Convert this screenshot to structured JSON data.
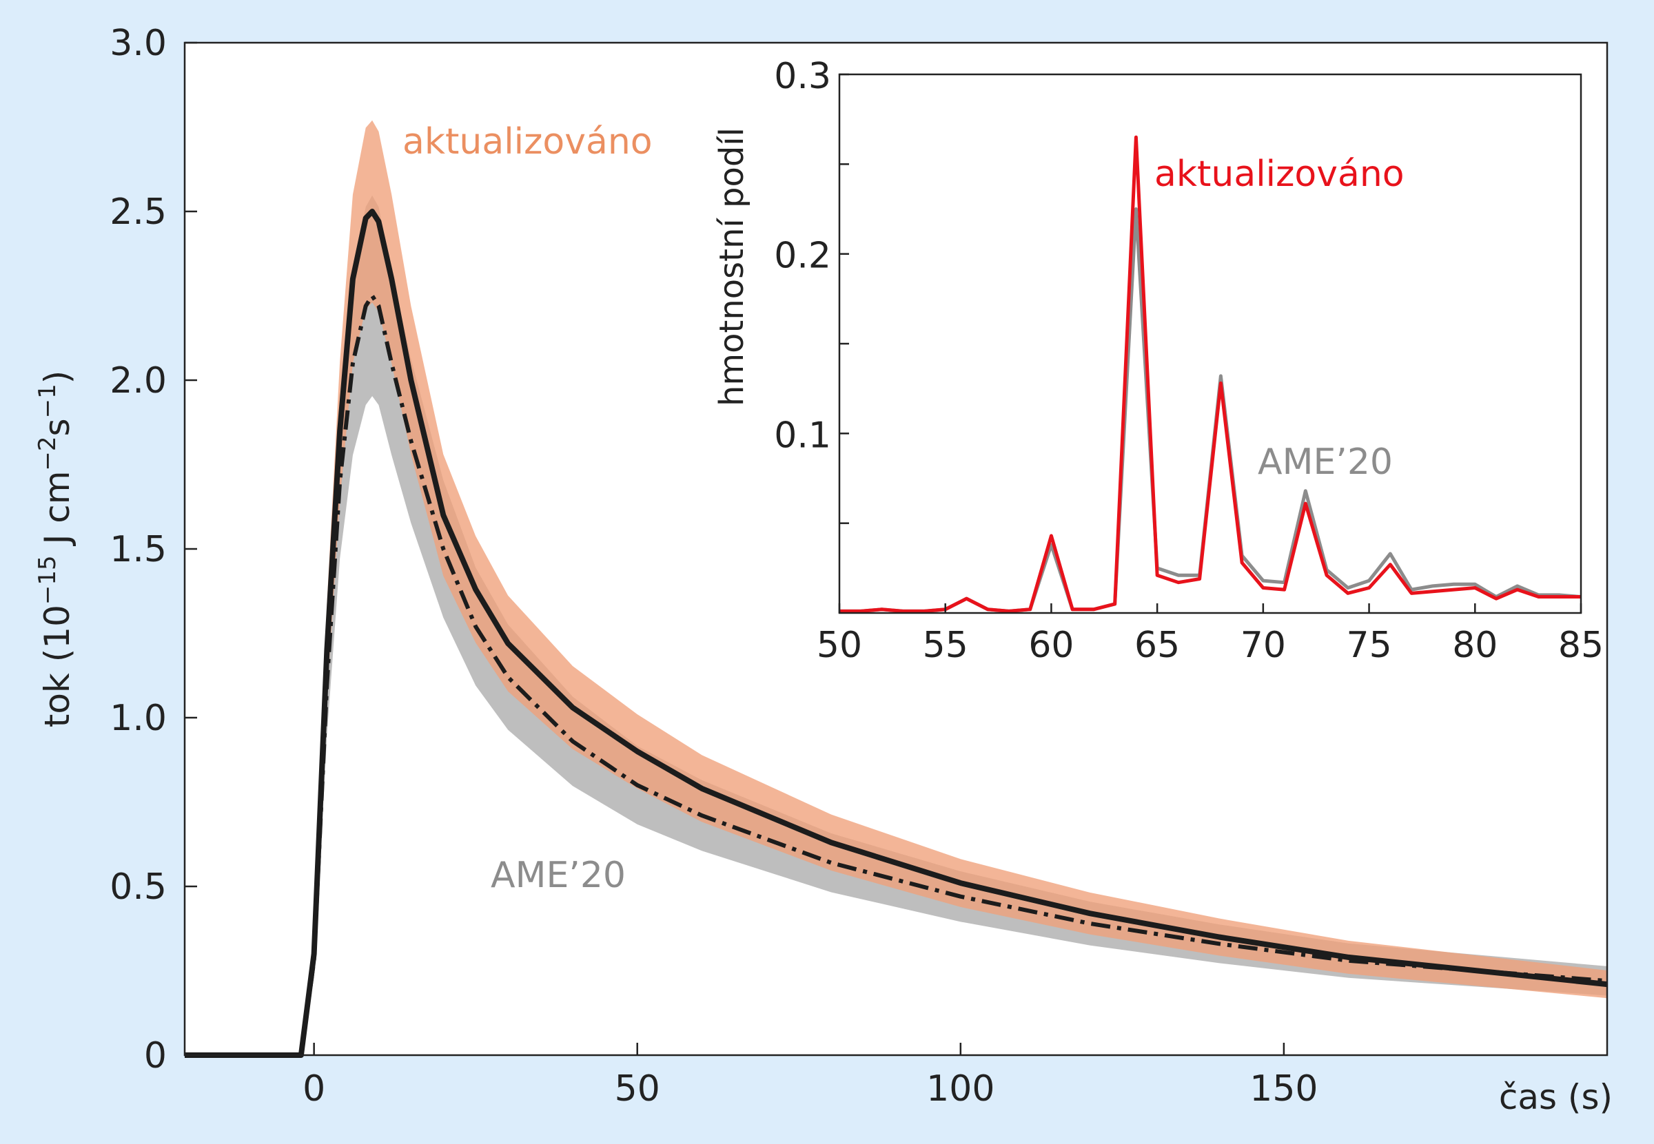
{
  "colors": {
    "background": "#dcedfb",
    "updated_band": "#f0a07a",
    "ame_band": "#b7b7b7",
    "main_line": "#1c1c1c",
    "inset_updated": "#e8121b",
    "inset_ame": "#8c8c8c",
    "label_orange": "#eb8f61",
    "label_gray": "#8c8c8c"
  },
  "chart_data": [
    {
      "type": "line",
      "xlabel": "čas (s)",
      "ylabel_main": "tok",
      "ylabel_unit_prefix": "(10",
      "ylabel_exp1": "−15",
      "ylabel_mid": " J cm",
      "ylabel_exp2": "−2",
      "ylabel_s": "s",
      "ylabel_exp3": "−1",
      "ylabel_end": ")",
      "xlim": [
        -20,
        200
      ],
      "ylim": [
        0,
        3.0
      ],
      "xticks": [
        0,
        50,
        100,
        150
      ],
      "xtick_labels": [
        "0",
        "50",
        "100",
        "150"
      ],
      "yticks": [
        0,
        0.5,
        1.0,
        1.5,
        2.0,
        2.5,
        3.0
      ],
      "ytick_labels": [
        "0",
        "0.5",
        "1.0",
        "1.5",
        "2.0",
        "2.5",
        "3.0"
      ],
      "grid": false,
      "annotations": [
        "aktualizováno",
        "AME’20"
      ],
      "series": [
        {
          "name": "aktualizováno",
          "style": "solid",
          "x": [
            -20,
            -2,
            0,
            2,
            4,
            6,
            8,
            9,
            10,
            12,
            15,
            20,
            25,
            30,
            40,
            50,
            60,
            80,
            100,
            120,
            140,
            160,
            180,
            200
          ],
          "y": [
            0,
            0,
            0.3,
            1.2,
            1.85,
            2.3,
            2.48,
            2.5,
            2.47,
            2.3,
            2.0,
            1.6,
            1.38,
            1.22,
            1.03,
            0.9,
            0.79,
            0.63,
            0.51,
            0.42,
            0.35,
            0.29,
            0.25,
            0.21
          ],
          "band": [
            0.2,
            0.05
          ]
        },
        {
          "name": "AME’20",
          "style": "dash-dot",
          "x": [
            -20,
            -2,
            0,
            2,
            4,
            6,
            8,
            9,
            10,
            12,
            15,
            20,
            25,
            30,
            40,
            50,
            60,
            80,
            100,
            120,
            140,
            160,
            180,
            200
          ],
          "y": [
            0,
            0,
            0.28,
            1.1,
            1.7,
            2.05,
            2.22,
            2.25,
            2.22,
            2.05,
            1.82,
            1.5,
            1.27,
            1.12,
            0.93,
            0.8,
            0.71,
            0.57,
            0.47,
            0.39,
            0.33,
            0.28,
            0.25,
            0.22
          ],
          "band": [
            0.25,
            0.04
          ]
        }
      ]
    },
    {
      "type": "line",
      "ylabel": "hmotnostní podíl",
      "xlim": [
        50,
        85
      ],
      "ylim": [
        0,
        0.3
      ],
      "xticks": [
        50,
        55,
        60,
        65,
        70,
        75,
        80,
        85
      ],
      "xtick_labels": [
        "50",
        "55",
        "60",
        "65",
        "70",
        "75",
        "80",
        "85"
      ],
      "yticks": [
        0.1,
        0.2,
        0.3
      ],
      "ytick_labels": [
        "0.1",
        "0.2",
        "0.3"
      ],
      "minor_yticks": [
        0.05,
        0.15,
        0.25
      ],
      "grid": false,
      "annotations": [
        "aktualizováno",
        "AME’20"
      ],
      "series": [
        {
          "name": "AME’20",
          "x": [
            50,
            51,
            52,
            53,
            54,
            55,
            56,
            57,
            58,
            59,
            60,
            61,
            62,
            63,
            64,
            65,
            66,
            67,
            68,
            69,
            70,
            71,
            72,
            73,
            74,
            75,
            76,
            77,
            78,
            79,
            80,
            81,
            82,
            83,
            84,
            85
          ],
          "y": [
            0.001,
            0.001,
            0.002,
            0.001,
            0.001,
            0.002,
            0.008,
            0.002,
            0.001,
            0.002,
            0.038,
            0.002,
            0.002,
            0.005,
            0.225,
            0.025,
            0.021,
            0.021,
            0.132,
            0.032,
            0.018,
            0.017,
            0.068,
            0.024,
            0.014,
            0.018,
            0.033,
            0.013,
            0.015,
            0.016,
            0.016,
            0.009,
            0.015,
            0.01,
            0.01,
            0.009
          ]
        },
        {
          "name": "aktualizováno",
          "x": [
            50,
            51,
            52,
            53,
            54,
            55,
            56,
            57,
            58,
            59,
            60,
            61,
            62,
            63,
            64,
            65,
            66,
            67,
            68,
            69,
            70,
            71,
            72,
            73,
            74,
            75,
            76,
            77,
            78,
            79,
            80,
            81,
            82,
            83,
            84,
            85
          ],
          "y": [
            0.001,
            0.001,
            0.002,
            0.001,
            0.001,
            0.002,
            0.008,
            0.002,
            0.001,
            0.002,
            0.043,
            0.002,
            0.002,
            0.005,
            0.265,
            0.021,
            0.017,
            0.019,
            0.128,
            0.028,
            0.014,
            0.013,
            0.061,
            0.021,
            0.011,
            0.014,
            0.027,
            0.011,
            0.012,
            0.013,
            0.014,
            0.008,
            0.013,
            0.009,
            0.009,
            0.009
          ]
        }
      ]
    }
  ]
}
